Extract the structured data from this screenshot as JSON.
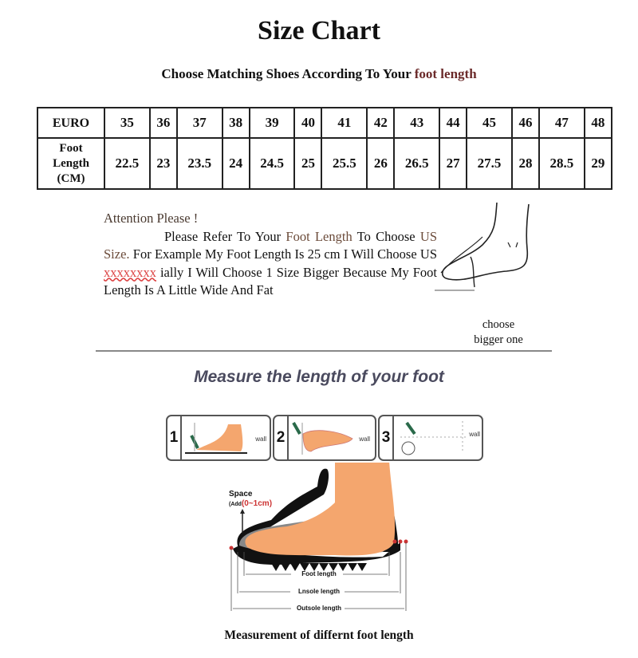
{
  "title": "Size Chart",
  "subtitle": {
    "prefix": "Choose Matching Shoes According To Your ",
    "highlight": "foot length"
  },
  "table": {
    "row1_header": "EURO",
    "row2_header": [
      "Foot",
      "Length",
      "(CM)"
    ],
    "euro": [
      "35",
      "36",
      "37",
      "38",
      "39",
      "40",
      "41",
      "42",
      "43",
      "44",
      "45",
      "46",
      "47",
      "48"
    ],
    "foot_length_cm": [
      "22.5",
      "23",
      "23.5",
      "24",
      "24.5",
      "25",
      "25.5",
      "26",
      "26.5",
      "27",
      "27.5",
      "28",
      "28.5",
      "29"
    ]
  },
  "attention": {
    "heading": "Attention Please !",
    "p1": "Please Refer To Your ",
    "foot_length": "Foot Length",
    "p2": " To Choose ",
    "us_size": "US Size.",
    "p3": " For Example My Foot Length Is 25 cm I Will Choose US ",
    "redacted": "xxxxxxxx",
    "p4": " ially I Will Choose 1 Size Bigger Because My Foot Length Is A Little Wide And Fat"
  },
  "choose_bigger": [
    "choose",
    "bigger one"
  ],
  "measure_heading": "Measure the length of your foot",
  "steps": [
    {
      "num": "1",
      "label": "wall"
    },
    {
      "num": "2",
      "label": "wall"
    },
    {
      "num": "3",
      "label": "wall"
    }
  ],
  "diagram": {
    "space": "Space",
    "add_prefix": "(Add",
    "add_value": "(0~1cm)",
    "foot_length": "Foot length",
    "insole_length": "Lnsole length",
    "outsole_length": "Outsole length"
  },
  "caption": "Measurement of differnt foot length",
  "colors": {
    "skin": "#f4a66e",
    "highlight_brown": "#6b2a2a",
    "red": "#d44444"
  }
}
